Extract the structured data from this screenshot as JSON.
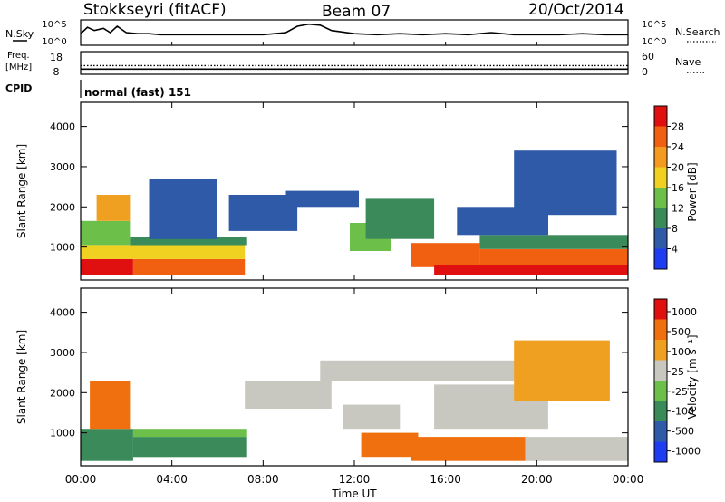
{
  "header": {
    "station": "Stokkseyri (fitACF)",
    "beam": "Beam 07",
    "date": "20/Oct/2014"
  },
  "top_panels": {
    "nsky_label": "N.Sky",
    "nsearch_label": "N.Search",
    "noise_ticks": [
      "10^5",
      "10^0"
    ],
    "freq_label_1": "Freq.",
    "freq_label_2": "[MHz]",
    "freq_ticks": [
      "18",
      "8"
    ],
    "nave_label": "Nave",
    "nave_ticks": [
      "60",
      "0"
    ],
    "cpid_label": "CPID",
    "cpid_text": "normal (fast) 151"
  },
  "power_panel": {
    "ylabel": "Slant Range [km]",
    "yticks": [
      1000,
      2000,
      3000,
      4000
    ],
    "ylim": [
      180,
      4600
    ],
    "colorbar_label": "Power [dB]",
    "colorbar_ticks": [
      "4",
      "8",
      "12",
      "16",
      "20",
      "24",
      "28"
    ],
    "colorbar_colors": [
      "#1e3cf0",
      "#2e5aa8",
      "#3a8a5a",
      "#6cc04a",
      "#f0d020",
      "#f59a20",
      "#f06010",
      "#e01010"
    ]
  },
  "velocity_panel": {
    "ylabel": "Slant Range [km]",
    "yticks": [
      1000,
      2000,
      3000,
      4000
    ],
    "ylim": [
      180,
      4600
    ],
    "colorbar_label": "Velocity [m s⁻¹]",
    "colorbar_ticks": [
      "1000",
      "500",
      "100",
      "25",
      "-25",
      "-100",
      "-500",
      "-1000"
    ],
    "colorbar_colors": [
      "#1e3cf0",
      "#2e5aa8",
      "#3a8a5a",
      "#6cc04a",
      "#c8c8c0",
      "#f0a020",
      "#f07010",
      "#e01010"
    ]
  },
  "x_axis": {
    "label": "Time UT",
    "ticks": [
      "00:00",
      "04:00",
      "08:00",
      "12:00",
      "16:00",
      "20:00",
      "00:00"
    ]
  },
  "chart_data": [
    {
      "type": "line",
      "name": "noise",
      "x_hours": [
        0,
        0.3,
        0.6,
        1.0,
        1.3,
        1.6,
        2.0,
        2.5,
        3,
        3.5,
        4,
        5,
        6,
        7,
        8,
        8.5,
        9,
        9.5,
        10,
        10.5,
        11,
        12,
        13,
        14,
        15,
        16,
        17,
        18,
        19,
        20,
        21,
        22,
        23,
        24
      ],
      "values": [
        0.55,
        0.85,
        0.7,
        0.8,
        0.6,
        0.9,
        0.6,
        0.55,
        0.55,
        0.5,
        0.5,
        0.5,
        0.5,
        0.5,
        0.5,
        0.55,
        0.6,
        0.9,
        1.0,
        0.95,
        0.7,
        0.55,
        0.5,
        0.55,
        0.5,
        0.55,
        0.5,
        0.6,
        0.5,
        0.5,
        0.5,
        0.55,
        0.5,
        0.5
      ],
      "ylim": [
        0,
        1.2
      ]
    },
    {
      "type": "line",
      "name": "freq",
      "x_hours": [
        0,
        4,
        8,
        12,
        16,
        20,
        24
      ],
      "values": [
        10.3,
        10.3,
        10.3,
        10.3,
        10.3,
        10.3,
        10.3
      ],
      "ylim": [
        8,
        18
      ]
    },
    {
      "type": "line",
      "name": "nave",
      "x_hours": [
        0,
        4,
        8,
        12,
        16,
        20,
        24
      ],
      "values": [
        23,
        23,
        23,
        23,
        23,
        23,
        23
      ],
      "ylim": [
        0,
        60
      ]
    },
    {
      "type": "heatmap",
      "name": "power",
      "xlim_hours": [
        0,
        24
      ],
      "ylim_km": [
        180,
        4600
      ],
      "blocks": [
        {
          "t0": 0.0,
          "t1": 2.3,
          "r0": 300,
          "r1": 700,
          "c": "#e01010"
        },
        {
          "t0": 2.3,
          "t1": 7.2,
          "r0": 300,
          "r1": 700,
          "c": "#f06010"
        },
        {
          "t0": 0.0,
          "t1": 7.2,
          "r0": 700,
          "r1": 1050,
          "c": "#f0d020"
        },
        {
          "t0": 0.0,
          "t1": 2.2,
          "r0": 1050,
          "r1": 1650,
          "c": "#6cc04a"
        },
        {
          "t0": 2.2,
          "t1": 7.3,
          "r0": 1050,
          "r1": 1250,
          "c": "#3a8a5a"
        },
        {
          "t0": 0.7,
          "t1": 2.2,
          "r0": 1650,
          "r1": 2300,
          "c": "#f0a020"
        },
        {
          "t0": 3.0,
          "t1": 6.0,
          "r0": 1200,
          "r1": 2700,
          "c": "#2e5aa8"
        },
        {
          "t0": 6.5,
          "t1": 9.5,
          "r0": 1400,
          "r1": 2300,
          "c": "#2e5aa8"
        },
        {
          "t0": 9.0,
          "t1": 12.2,
          "r0": 2000,
          "r1": 2400,
          "c": "#2e5aa8"
        },
        {
          "t0": 11.8,
          "t1": 13.6,
          "r0": 900,
          "r1": 1600,
          "c": "#6cc04a"
        },
        {
          "t0": 12.5,
          "t1": 15.5,
          "r0": 1200,
          "r1": 2200,
          "c": "#3a8a5a"
        },
        {
          "t0": 14.5,
          "t1": 17.5,
          "r0": 500,
          "r1": 1100,
          "c": "#f06010"
        },
        {
          "t0": 15.5,
          "t1": 24.0,
          "r0": 300,
          "r1": 550,
          "c": "#e01010"
        },
        {
          "t0": 17.5,
          "t1": 24.0,
          "r0": 550,
          "r1": 950,
          "c": "#f06010"
        },
        {
          "t0": 17.5,
          "t1": 24.0,
          "r0": 950,
          "r1": 1300,
          "c": "#3a8a5a"
        },
        {
          "t0": 16.5,
          "t1": 20.5,
          "r0": 1300,
          "r1": 2000,
          "c": "#2e5aa8"
        },
        {
          "t0": 19.0,
          "t1": 23.5,
          "r0": 1800,
          "r1": 3400,
          "c": "#2e5aa8"
        }
      ]
    },
    {
      "type": "heatmap",
      "name": "velocity",
      "xlim_hours": [
        0,
        24
      ],
      "ylim_km": [
        180,
        4600
      ],
      "blocks": [
        {
          "t0": 0.0,
          "t1": 2.3,
          "r0": 300,
          "r1": 1100,
          "c": "#3a8a5a"
        },
        {
          "t0": 2.3,
          "t1": 7.3,
          "r0": 400,
          "r1": 900,
          "c": "#3a8a5a"
        },
        {
          "t0": 2.3,
          "t1": 7.3,
          "r0": 900,
          "r1": 1100,
          "c": "#6cc04a"
        },
        {
          "t0": 0.4,
          "t1": 2.2,
          "r0": 1100,
          "r1": 2300,
          "c": "#f07010"
        },
        {
          "t0": 7.2,
          "t1": 11.0,
          "r0": 1600,
          "r1": 2300,
          "c": "#c8c8c0"
        },
        {
          "t0": 11.5,
          "t1": 14.0,
          "r0": 1100,
          "r1": 1700,
          "c": "#c8c8c0"
        },
        {
          "t0": 12.3,
          "t1": 14.8,
          "r0": 400,
          "r1": 1000,
          "c": "#f07010"
        },
        {
          "t0": 14.5,
          "t1": 19.5,
          "r0": 300,
          "r1": 900,
          "c": "#f07010"
        },
        {
          "t0": 19.5,
          "t1": 24.0,
          "r0": 300,
          "r1": 900,
          "c": "#c8c8c0"
        },
        {
          "t0": 15.5,
          "t1": 20.5,
          "r0": 1100,
          "r1": 2200,
          "c": "#c8c8c0"
        },
        {
          "t0": 10.5,
          "t1": 22.0,
          "r0": 2300,
          "r1": 2800,
          "c": "#c8c8c0"
        },
        {
          "t0": 19.0,
          "t1": 23.2,
          "r0": 1800,
          "r1": 3300,
          "c": "#f0a020"
        }
      ]
    }
  ]
}
